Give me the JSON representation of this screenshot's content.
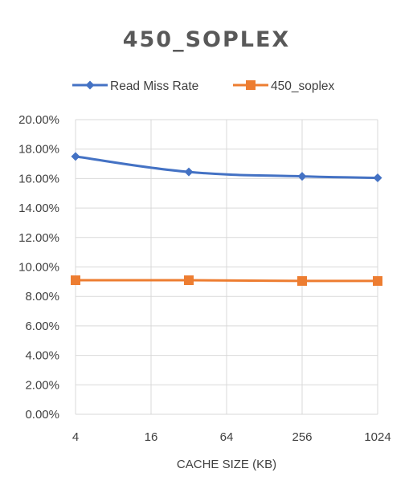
{
  "chart_data": {
    "type": "line",
    "title": "450_SOPLEX",
    "xlabel": "CACHE SIZE (KB)",
    "ylabel": "",
    "x_scale": "log2",
    "x_ticks": [
      "4",
      "16",
      "64",
      "256",
      "1024"
    ],
    "xlim": [
      4,
      1024
    ],
    "ylim": [
      0,
      0.2
    ],
    "y_ticks": [
      "0.00%",
      "2.00%",
      "4.00%",
      "6.00%",
      "8.00%",
      "10.00%",
      "12.00%",
      "14.00%",
      "16.00%",
      "18.00%",
      "20.00%"
    ],
    "grid": true,
    "legend_position": "top",
    "series": [
      {
        "name": "Read Miss Rate",
        "color": "#4472C4",
        "marker": "diamond",
        "x": [
          4,
          32,
          256,
          1024
        ],
        "y": [
          0.175,
          0.1645,
          0.1615,
          0.1605
        ]
      },
      {
        "name": "450_soplex",
        "color": "#ED7D31",
        "marker": "square",
        "x": [
          4,
          32,
          256,
          1024
        ],
        "y": [
          0.091,
          0.091,
          0.0905,
          0.0905
        ]
      }
    ]
  }
}
